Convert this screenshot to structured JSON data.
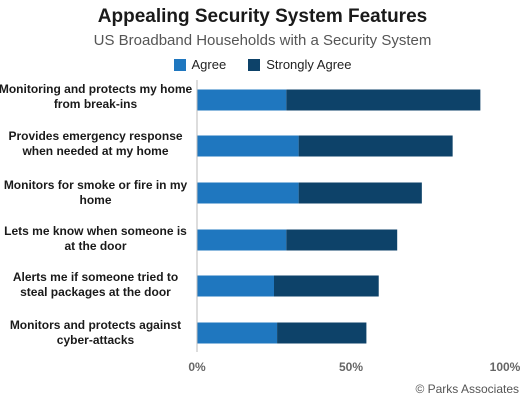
{
  "header": {
    "title": "Appealing Security System Features",
    "subtitle": "US Broadband Households with a Security System"
  },
  "credit": "© Parks Associates",
  "chart_data": {
    "type": "bar",
    "orientation": "horizontal",
    "stacked": true,
    "title": "Appealing Security System Features",
    "subtitle": "US Broadband Households with a Security System",
    "categories": [
      "Monitoring and protects my home from break-ins",
      "Provides emergency response when needed at my home",
      "Monitors for smoke or fire in my home",
      "Lets me know when someone is at the door",
      "Alerts me if someone tried to steal packages at the door",
      "Monitors and protects against cyber-attacks"
    ],
    "series": [
      {
        "name": "Agree",
        "color": "#1f77bf",
        "values": [
          29,
          33,
          33,
          29,
          25,
          26
        ]
      },
      {
        "name": "Strongly Agree",
        "color": "#0d4269",
        "values": [
          63,
          50,
          40,
          36,
          34,
          29
        ]
      }
    ],
    "xlim": [
      0,
      100
    ],
    "x_ticks": [
      "0%",
      "50%",
      "100%"
    ],
    "legend_position": "top",
    "grid": false
  }
}
